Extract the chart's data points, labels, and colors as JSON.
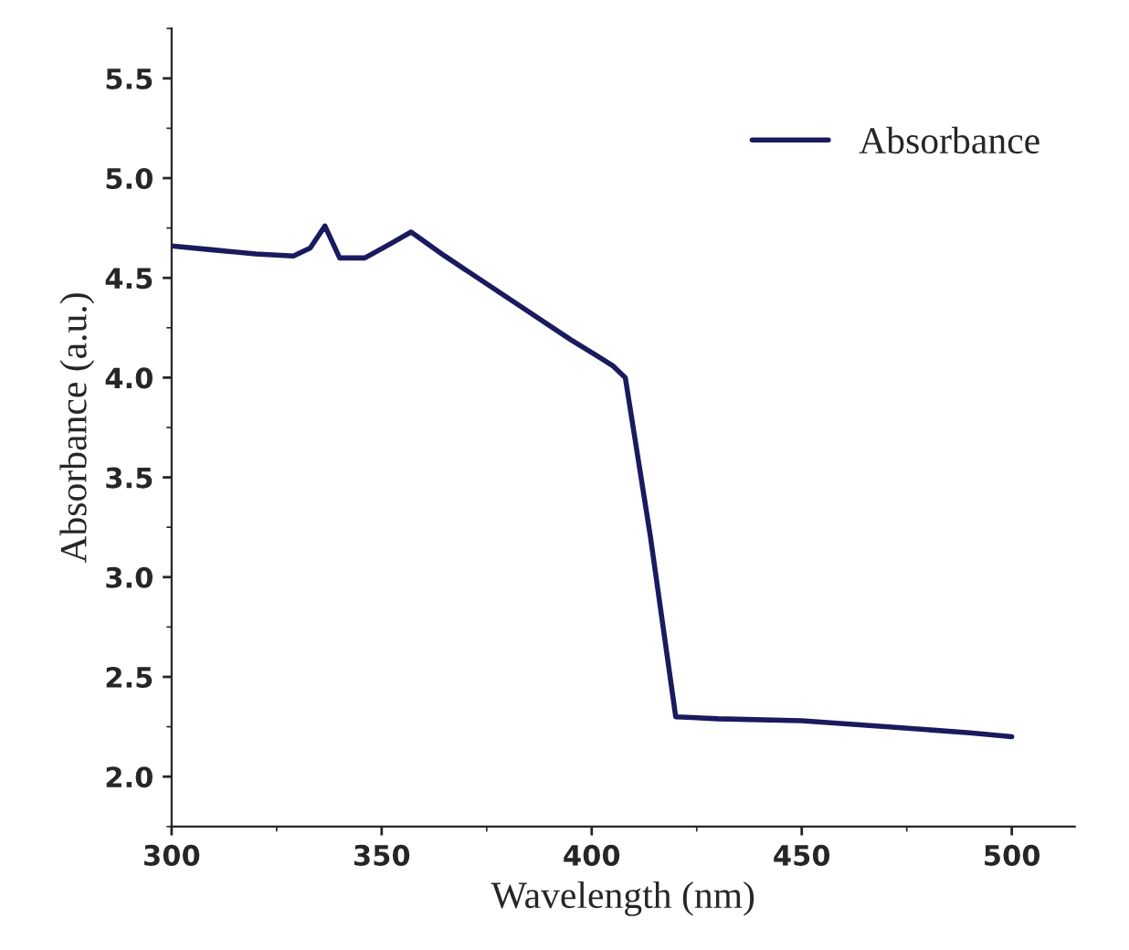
{
  "chart_data": {
    "type": "line",
    "xlabel": "Wavelength (nm)",
    "ylabel": "Absorbance (a.u.)",
    "x": [
      300,
      310,
      320,
      329,
      333,
      336.5,
      340,
      346,
      352,
      357,
      365,
      380,
      395,
      402,
      405,
      408,
      414,
      420,
      430,
      450,
      470,
      490,
      500
    ],
    "series": [
      {
        "name": "Absorbance",
        "color": "#1a1a5e",
        "values": [
          4.66,
          4.64,
          4.62,
          4.61,
          4.65,
          4.76,
          4.6,
          4.6,
          4.67,
          4.73,
          4.61,
          4.4,
          4.19,
          4.1,
          4.06,
          4.0,
          3.2,
          2.3,
          2.29,
          2.28,
          2.25,
          2.22,
          2.2
        ]
      }
    ],
    "xlim": [
      300,
      515
    ],
    "xticks": [
      300,
      350,
      400,
      450,
      500
    ],
    "ylim": [
      1.75,
      5.75
    ],
    "yticks": [
      {
        "value": 2,
        "label": "2.0"
      },
      2.5,
      {
        "value": 3,
        "label": "3.0"
      },
      3.5,
      {
        "value": 4,
        "label": "4.0"
      },
      4.5,
      {
        "value": 5,
        "label": "5.0"
      },
      5.5
    ],
    "legend": "top right",
    "grid": false,
    "marker": "none",
    "line_style": "solid"
  }
}
